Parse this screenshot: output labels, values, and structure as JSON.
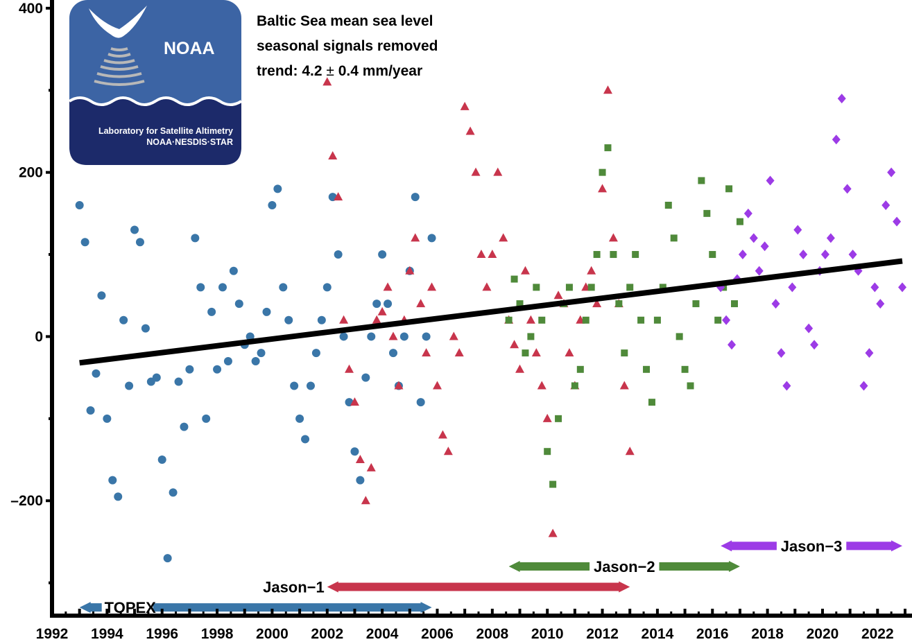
{
  "chart_data": {
    "type": "scatter",
    "title": [
      "Baltic Sea mean sea level",
      "seasonal signals removed"
    ],
    "trend_label": {
      "prefix": "trend:  4.2 ",
      "pm": "±",
      "suffix": " 0.4 mm/year"
    },
    "trend_line": {
      "x": [
        1993.0,
        2022.9
      ],
      "y": [
        -32,
        92
      ]
    },
    "xlim": [
      1992,
      2023
    ],
    "ylim": [
      -340,
      410
    ],
    "x_ticks": [
      1992,
      1994,
      1996,
      1998,
      2000,
      2002,
      2004,
      2006,
      2008,
      2010,
      2012,
      2014,
      2016,
      2018,
      2020,
      2022
    ],
    "x_tick_labels": [
      "1992",
      "1994",
      "1996",
      "1998",
      "2000",
      "2002",
      "2004",
      "2006",
      "2008",
      "2010",
      "2012",
      "2014",
      "2016",
      "2018",
      "2020",
      "2022"
    ],
    "y_ticks": [
      -200,
      0,
      200,
      400
    ],
    "y_tick_labels": [
      "–200",
      "0",
      "200",
      "400"
    ],
    "grid": false,
    "colors": {
      "topex": "#3a76a8",
      "jason1": "#c8354c",
      "jason2": "#4f8a3a",
      "jason3": "#9c3be6",
      "trend": "#000000",
      "logo_bg": "#3c64a4",
      "logo_dark": "#1c2a6a"
    },
    "series": [
      {
        "name": "TOPEX",
        "marker": "circle",
        "x_range": [
          1993.0,
          2005.8
        ],
        "points": [
          [
            1993.0,
            160
          ],
          [
            1993.2,
            115
          ],
          [
            1993.4,
            -90
          ],
          [
            1993.6,
            -45
          ],
          [
            1993.8,
            50
          ],
          [
            1994.0,
            -100
          ],
          [
            1994.2,
            -175
          ],
          [
            1994.4,
            -195
          ],
          [
            1994.6,
            20
          ],
          [
            1994.8,
            -60
          ],
          [
            1995.0,
            130
          ],
          [
            1995.2,
            115
          ],
          [
            1995.4,
            10
          ],
          [
            1995.6,
            -55
          ],
          [
            1995.8,
            -50
          ],
          [
            1996.0,
            -150
          ],
          [
            1996.2,
            -270
          ],
          [
            1996.4,
            -190
          ],
          [
            1996.6,
            -55
          ],
          [
            1996.8,
            -110
          ],
          [
            1997.0,
            -40
          ],
          [
            1997.2,
            120
          ],
          [
            1997.4,
            60
          ],
          [
            1997.6,
            -100
          ],
          [
            1997.8,
            30
          ],
          [
            1998.0,
            -40
          ],
          [
            1998.2,
            60
          ],
          [
            1998.4,
            -30
          ],
          [
            1998.6,
            80
          ],
          [
            1998.8,
            40
          ],
          [
            1999.0,
            -10
          ],
          [
            1999.2,
            0
          ],
          [
            1999.4,
            -30
          ],
          [
            1999.6,
            -20
          ],
          [
            1999.8,
            30
          ],
          [
            2000.0,
            160
          ],
          [
            2000.2,
            180
          ],
          [
            2000.4,
            60
          ],
          [
            2000.6,
            20
          ],
          [
            2000.8,
            -60
          ],
          [
            2001.0,
            -100
          ],
          [
            2001.2,
            -125
          ],
          [
            2001.4,
            -60
          ],
          [
            2001.6,
            -20
          ],
          [
            2001.8,
            20
          ],
          [
            2002.0,
            60
          ],
          [
            2002.2,
            170
          ],
          [
            2002.4,
            100
          ],
          [
            2002.6,
            0
          ],
          [
            2002.8,
            -80
          ],
          [
            2003.0,
            -140
          ],
          [
            2003.2,
            -175
          ],
          [
            2003.4,
            -50
          ],
          [
            2003.6,
            0
          ],
          [
            2003.8,
            40
          ],
          [
            2004.0,
            100
          ],
          [
            2004.2,
            40
          ],
          [
            2004.4,
            -20
          ],
          [
            2004.6,
            -60
          ],
          [
            2004.8,
            0
          ],
          [
            2005.0,
            80
          ],
          [
            2005.2,
            170
          ],
          [
            2005.4,
            -80
          ],
          [
            2005.6,
            0
          ],
          [
            2005.8,
            120
          ]
        ]
      },
      {
        "name": "Jason-1",
        "marker": "triangle",
        "x_range": [
          2002.0,
          2013.0
        ],
        "points": [
          [
            2002.0,
            310
          ],
          [
            2002.2,
            220
          ],
          [
            2002.4,
            170
          ],
          [
            2002.6,
            20
          ],
          [
            2002.8,
            -40
          ],
          [
            2003.0,
            -80
          ],
          [
            2003.2,
            -150
          ],
          [
            2003.4,
            -200
          ],
          [
            2003.6,
            -160
          ],
          [
            2003.8,
            20
          ],
          [
            2004.0,
            30
          ],
          [
            2004.2,
            60
          ],
          [
            2004.4,
            0
          ],
          [
            2004.6,
            -60
          ],
          [
            2004.8,
            20
          ],
          [
            2005.0,
            80
          ],
          [
            2005.2,
            120
          ],
          [
            2005.4,
            40
          ],
          [
            2005.6,
            -20
          ],
          [
            2005.8,
            60
          ],
          [
            2006.0,
            -60
          ],
          [
            2006.2,
            -120
          ],
          [
            2006.4,
            -140
          ],
          [
            2006.6,
            0
          ],
          [
            2006.8,
            -20
          ],
          [
            2007.0,
            280
          ],
          [
            2007.2,
            250
          ],
          [
            2007.4,
            200
          ],
          [
            2007.6,
            100
          ],
          [
            2007.8,
            60
          ],
          [
            2008.0,
            100
          ],
          [
            2008.2,
            200
          ],
          [
            2008.4,
            120
          ],
          [
            2008.6,
            20
          ],
          [
            2008.8,
            -10
          ],
          [
            2009.0,
            -40
          ],
          [
            2009.2,
            80
          ],
          [
            2009.4,
            20
          ],
          [
            2009.6,
            -20
          ],
          [
            2009.8,
            -60
          ],
          [
            2010.0,
            -100
          ],
          [
            2010.2,
            -240
          ],
          [
            2010.4,
            50
          ],
          [
            2010.6,
            40
          ],
          [
            2010.8,
            -20
          ],
          [
            2011.0,
            -60
          ],
          [
            2011.2,
            20
          ],
          [
            2011.4,
            60
          ],
          [
            2011.6,
            80
          ],
          [
            2011.8,
            40
          ],
          [
            2012.0,
            180
          ],
          [
            2012.2,
            300
          ],
          [
            2012.4,
            120
          ],
          [
            2012.6,
            40
          ],
          [
            2012.8,
            -60
          ],
          [
            2013.0,
            -140
          ]
        ]
      },
      {
        "name": "Jason-2",
        "marker": "square",
        "x_range": [
          2008.6,
          2017.0
        ],
        "points": [
          [
            2008.6,
            20
          ],
          [
            2008.8,
            70
          ],
          [
            2009.0,
            40
          ],
          [
            2009.2,
            -20
          ],
          [
            2009.4,
            0
          ],
          [
            2009.6,
            60
          ],
          [
            2009.8,
            20
          ],
          [
            2010.0,
            -140
          ],
          [
            2010.2,
            -180
          ],
          [
            2010.4,
            -100
          ],
          [
            2010.6,
            40
          ],
          [
            2010.8,
            60
          ],
          [
            2011.0,
            -60
          ],
          [
            2011.2,
            -40
          ],
          [
            2011.4,
            20
          ],
          [
            2011.6,
            60
          ],
          [
            2011.8,
            100
          ],
          [
            2012.0,
            200
          ],
          [
            2012.2,
            230
          ],
          [
            2012.4,
            100
          ],
          [
            2012.6,
            40
          ],
          [
            2012.8,
            -20
          ],
          [
            2013.0,
            60
          ],
          [
            2013.2,
            100
          ],
          [
            2013.4,
            20
          ],
          [
            2013.6,
            -40
          ],
          [
            2013.8,
            -80
          ],
          [
            2014.0,
            20
          ],
          [
            2014.2,
            60
          ],
          [
            2014.4,
            160
          ],
          [
            2014.6,
            120
          ],
          [
            2014.8,
            0
          ],
          [
            2015.0,
            -40
          ],
          [
            2015.2,
            -60
          ],
          [
            2015.4,
            40
          ],
          [
            2015.6,
            190
          ],
          [
            2015.8,
            150
          ],
          [
            2016.0,
            100
          ],
          [
            2016.2,
            20
          ],
          [
            2016.4,
            60
          ],
          [
            2016.6,
            180
          ],
          [
            2016.8,
            40
          ],
          [
            2017.0,
            140
          ]
        ]
      },
      {
        "name": "Jason-3",
        "marker": "diamond",
        "x_range": [
          2016.3,
          2022.9
        ],
        "points": [
          [
            2016.3,
            60
          ],
          [
            2016.5,
            20
          ],
          [
            2016.7,
            -10
          ],
          [
            2016.9,
            70
          ],
          [
            2017.1,
            100
          ],
          [
            2017.3,
            150
          ],
          [
            2017.5,
            120
          ],
          [
            2017.7,
            80
          ],
          [
            2017.9,
            110
          ],
          [
            2018.1,
            190
          ],
          [
            2018.3,
            40
          ],
          [
            2018.5,
            -20
          ],
          [
            2018.7,
            -60
          ],
          [
            2018.9,
            60
          ],
          [
            2019.1,
            130
          ],
          [
            2019.3,
            100
          ],
          [
            2019.5,
            10
          ],
          [
            2019.7,
            -10
          ],
          [
            2019.9,
            80
          ],
          [
            2020.1,
            100
          ],
          [
            2020.3,
            120
          ],
          [
            2020.5,
            240
          ],
          [
            2020.7,
            290
          ],
          [
            2020.9,
            180
          ],
          [
            2021.1,
            100
          ],
          [
            2021.3,
            80
          ],
          [
            2021.5,
            -60
          ],
          [
            2021.7,
            -20
          ],
          [
            2021.9,
            60
          ],
          [
            2022.1,
            40
          ],
          [
            2022.3,
            160
          ],
          [
            2022.5,
            200
          ],
          [
            2022.7,
            140
          ],
          [
            2022.9,
            60
          ]
        ]
      }
    ],
    "missions": [
      {
        "name": "TOPEX",
        "label": "TOPEX",
        "start": 1993.0,
        "end": 2005.8,
        "y": -330
      },
      {
        "name": "Jason-1",
        "label": "Jason−1",
        "start": 2002.0,
        "end": 2013.0,
        "y": -305
      },
      {
        "name": "Jason-2",
        "label": "Jason−2",
        "start": 2008.6,
        "end": 2017.0,
        "y": -280
      },
      {
        "name": "Jason-3",
        "label": "Jason−3",
        "start": 2016.3,
        "end": 2022.9,
        "y": -255
      }
    ]
  },
  "logo": {
    "name": "NOAA",
    "line1": "Laboratory for Satellite Altimetry",
    "line2": "NOAA·NESDIS·STAR"
  }
}
